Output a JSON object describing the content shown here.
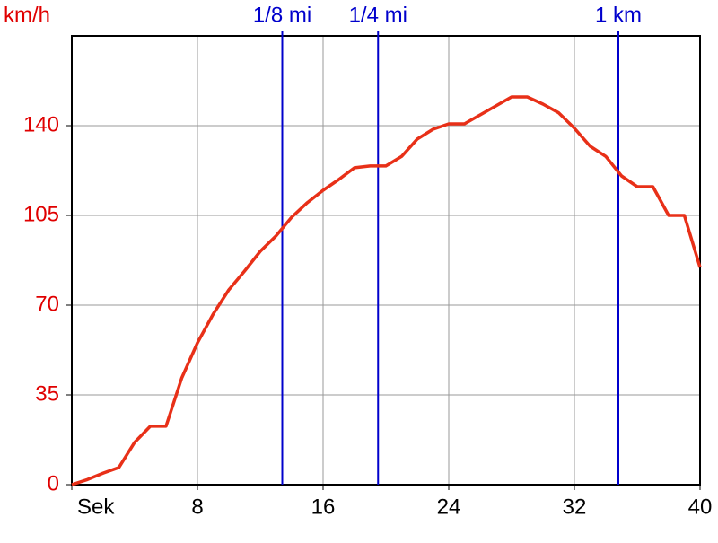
{
  "chart_data": {
    "type": "line",
    "ylabel": "km/h",
    "x": [
      0,
      1,
      2,
      3,
      4,
      5,
      6,
      7,
      8,
      9,
      10,
      11,
      12,
      13,
      14,
      15,
      16,
      17,
      18,
      19,
      20,
      21,
      22,
      23,
      24,
      25,
      26,
      27,
      28,
      29,
      30,
      31,
      32,
      33,
      34,
      35,
      36,
      37,
      38,
      39,
      40
    ],
    "series": [
      {
        "color": "#e83018",
        "values": [
          0,
          2,
          4.5,
          6.7,
          16.5,
          22.8,
          22.8,
          41.6,
          55.3,
          66.5,
          76,
          83.3,
          91,
          97,
          104.3,
          110,
          114.8,
          119,
          123.6,
          124.3,
          124.3,
          128,
          134.8,
          138.6,
          140.7,
          140.7,
          144.2,
          147.7,
          151.2,
          151.2,
          148.4,
          145,
          139,
          132,
          128,
          120.4,
          116.2,
          116.2,
          105,
          105,
          84.7
        ]
      }
    ],
    "xlim": [
      0,
      40
    ],
    "xticks": [
      {
        "value": 0,
        "label": "Sek"
      },
      8,
      16,
      24,
      32,
      40
    ],
    "ylim": [
      0,
      175
    ],
    "yticks": [
      0,
      35,
      70,
      105,
      140
    ],
    "grid": true,
    "markers": [
      {
        "x": 13.4,
        "label": "1/8 mi"
      },
      {
        "x": 19.5,
        "label": "1/4 mi"
      },
      {
        "x": 34.8,
        "label": "1 km"
      }
    ],
    "marker_color": "#0000cc"
  }
}
